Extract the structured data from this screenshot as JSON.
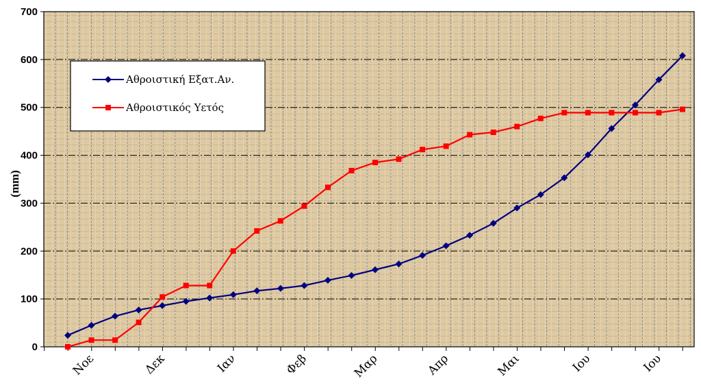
{
  "chart_data": {
    "type": "line",
    "ylabel": "(mm)",
    "ylim": [
      0,
      700
    ],
    "yticks": [
      0,
      100,
      200,
      300,
      400,
      500,
      600,
      700
    ],
    "x_tick_labels": [
      "Νοε",
      "Δεκ",
      "Ιαν",
      "Φεβ",
      "Μαρ",
      "Απρ",
      "Μαι",
      "Ιου",
      "Ιου"
    ],
    "grid": true,
    "legend_position": "top-left",
    "series": [
      {
        "name": "Αθροιστική Εξατ.Αν.",
        "color": "#000080",
        "marker": "diamond",
        "values": [
          24,
          45,
          64,
          77,
          86,
          95,
          102,
          109,
          117,
          122,
          128,
          139,
          149,
          161,
          173,
          191,
          211,
          233,
          258,
          290,
          318,
          353,
          401,
          456,
          505,
          558,
          608
        ]
      },
      {
        "name": "Αθροιστικός Υετός",
        "color": "#ff0000",
        "marker": "square",
        "values": [
          0,
          14,
          14,
          51,
          104,
          128,
          128,
          200,
          242,
          263,
          294,
          333,
          368,
          385,
          392,
          412,
          419,
          443,
          448,
          460,
          477,
          489,
          489,
          489,
          489,
          489,
          496
        ]
      }
    ]
  }
}
